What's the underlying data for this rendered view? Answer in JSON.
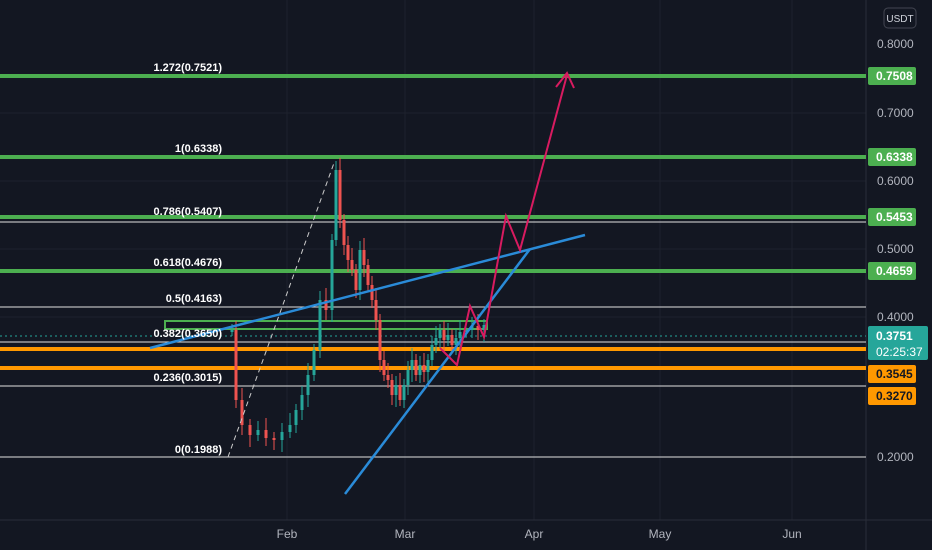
{
  "chart_data": {
    "type": "candlestick",
    "currency": "USDT",
    "price_axis": {
      "scale": "log",
      "ticks": [
        {
          "label": "0.8000",
          "value": 0.8
        },
        {
          "label": "0.7000",
          "value": 0.7
        },
        {
          "label": "0.6000",
          "value": 0.6
        },
        {
          "label": "0.5000",
          "value": 0.5
        },
        {
          "label": "0.4000",
          "value": 0.4
        },
        {
          "label": "0.2000",
          "value": 0.2
        }
      ]
    },
    "time_axis": {
      "labels": [
        "Feb",
        "Mar",
        "Apr",
        "May",
        "Jun"
      ]
    },
    "fib_levels": [
      {
        "label": "1.272(0.7521)",
        "value": 0.7521,
        "color": "#4caf50"
      },
      {
        "label": "1(0.6338)",
        "value": 0.6338,
        "color": "#4caf50"
      },
      {
        "label": "0.786(0.5407)",
        "value": 0.5407,
        "color": "#4caf50"
      },
      {
        "label": "0.618(0.4676)",
        "value": 0.4676,
        "color": "#4caf50"
      },
      {
        "label": "0.5(0.4163)",
        "value": 0.4163,
        "color": "#ffffff"
      },
      {
        "label": "0.382(0.3650)",
        "value": 0.365,
        "color": "#ffffff"
      },
      {
        "label": "0.236(0.3015)",
        "value": 0.3015,
        "color": "#ffffff"
      },
      {
        "label": "0(0.1988)",
        "value": 0.1988,
        "color": "#ffffff"
      }
    ],
    "price_badges": [
      {
        "label": "0.7508",
        "value": 0.7508,
        "bg": "#4caf50",
        "fg": "#ffffff"
      },
      {
        "label": "0.6338",
        "value": 0.6338,
        "bg": "#4caf50",
        "fg": "#ffffff"
      },
      {
        "label": "0.5453",
        "value": 0.5453,
        "bg": "#4caf50",
        "fg": "#ffffff"
      },
      {
        "label": "0.4659",
        "value": 0.4659,
        "bg": "#4caf50",
        "fg": "#ffffff"
      },
      {
        "label": "0.3751",
        "value": 0.3751,
        "bg": "#26a69a",
        "fg": "#ffffff",
        "sub": "02:25:37"
      },
      {
        "label": "0.3545",
        "value": 0.3545,
        "bg": "#ff9800",
        "fg": "#131722"
      },
      {
        "label": "0.3270",
        "value": 0.327,
        "bg": "#ff9800",
        "fg": "#131722"
      }
    ],
    "horizontal_lines": [
      {
        "value": 0.7508,
        "color": "#4caf50"
      },
      {
        "value": 0.6338,
        "color": "#4caf50"
      },
      {
        "value": 0.5453,
        "color": "#4caf50"
      },
      {
        "value": 0.4659,
        "color": "#4caf50"
      },
      {
        "value": 0.3545,
        "color": "#ff9800"
      },
      {
        "value": 0.327,
        "color": "#ff9800"
      }
    ],
    "colors": {
      "background": "#131722",
      "up": "#26a69a",
      "down": "#ef5350",
      "trendline": "#2a8bd8",
      "projection": "#d81b60",
      "text": "#d1d4dc"
    }
  }
}
